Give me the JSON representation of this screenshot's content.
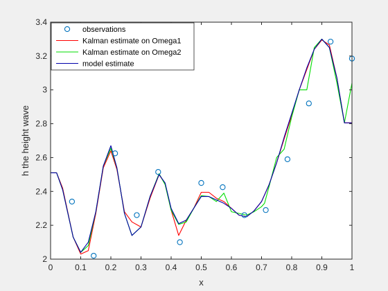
{
  "chart_data": {
    "type": "line",
    "xlabel": "x",
    "ylabel": "h the height wave",
    "xlim": [
      0,
      1
    ],
    "ylim": [
      2,
      3.4
    ],
    "xticks": [
      0,
      0.1,
      0.2,
      0.3,
      0.4,
      0.5,
      0.6,
      0.7,
      0.8,
      0.9,
      1
    ],
    "xtick_labels": [
      "0",
      "0.1",
      "0.2",
      "0.3",
      "0.4",
      "0.5",
      "0.6",
      "0.7",
      "0.8",
      "0.9",
      "1"
    ],
    "yticks": [
      2,
      2.2,
      2.4,
      2.6,
      2.8,
      3,
      3.2,
      3.4
    ],
    "ytick_labels": [
      "2",
      "2.2",
      "2.4",
      "2.6",
      "2.8",
      "3",
      "3.2",
      "3.4"
    ],
    "grid": false,
    "legend_position": "top-left",
    "series": [
      {
        "name": "observations",
        "style": "markers",
        "color": "#0072bd",
        "x": [
          0.071,
          0.143,
          0.214,
          0.286,
          0.357,
          0.429,
          0.5,
          0.571,
          0.643,
          0.714,
          0.786,
          0.857,
          0.929,
          1.0
        ],
        "y": [
          2.34,
          2.02,
          2.625,
          2.26,
          2.515,
          2.1,
          2.45,
          2.425,
          2.26,
          2.29,
          2.59,
          2.92,
          3.285,
          3.185
        ]
      },
      {
        "name": "Kalman estimate on Omega1",
        "style": "line",
        "color": "#ff0000",
        "x": [
          0,
          0.02,
          0.04,
          0.075,
          0.1,
          0.125,
          0.15,
          0.175,
          0.2,
          0.22,
          0.245,
          0.27,
          0.3,
          0.33,
          0.36,
          0.38,
          0.4,
          0.425,
          0.45,
          0.475,
          0.5,
          0.525,
          0.55,
          0.575,
          0.6,
          0.625,
          0.65,
          0.675,
          0.7,
          0.725,
          0.75,
          0.775,
          0.8,
          0.825,
          0.85,
          0.875,
          0.9,
          0.925,
          0.95,
          0.975,
          1.0
        ],
        "y": [
          2.51,
          2.51,
          2.42,
          2.13,
          2.03,
          2.05,
          2.27,
          2.54,
          2.64,
          2.53,
          2.28,
          2.22,
          2.19,
          2.36,
          2.5,
          2.445,
          2.29,
          2.14,
          2.23,
          2.3,
          2.395,
          2.395,
          2.36,
          2.34,
          2.3,
          2.26,
          2.25,
          2.285,
          2.34,
          2.44,
          2.57,
          2.71,
          2.85,
          3.0,
          3.12,
          3.24,
          3.295,
          3.265,
          3.07,
          2.805,
          2.805
        ]
      },
      {
        "name": "Kalman estimate on Omega2",
        "style": "line",
        "color": "#00dd00",
        "x": [
          0,
          0.02,
          0.04,
          0.075,
          0.1,
          0.125,
          0.15,
          0.175,
          0.2,
          0.22,
          0.245,
          0.27,
          0.3,
          0.33,
          0.36,
          0.38,
          0.4,
          0.425,
          0.45,
          0.475,
          0.5,
          0.525,
          0.55,
          0.575,
          0.6,
          0.625,
          0.65,
          0.675,
          0.7,
          0.71,
          0.725,
          0.75,
          0.775,
          0.8,
          0.825,
          0.85,
          0.875,
          0.9,
          0.925,
          0.95,
          0.975,
          1.0
        ],
        "y": [
          2.51,
          2.51,
          2.41,
          2.13,
          2.04,
          2.08,
          2.28,
          2.55,
          2.655,
          2.54,
          2.27,
          2.14,
          2.19,
          2.37,
          2.505,
          2.44,
          2.29,
          2.205,
          2.22,
          2.3,
          2.375,
          2.37,
          2.34,
          2.39,
          2.28,
          2.27,
          2.26,
          2.28,
          2.31,
          2.33,
          2.43,
          2.6,
          2.65,
          2.84,
          3.0,
          3.0,
          3.25,
          3.3,
          3.25,
          3.04,
          2.805,
          3.04
        ]
      },
      {
        "name": "model estimate",
        "style": "line",
        "color": "#0000aa",
        "x": [
          0,
          0.02,
          0.04,
          0.075,
          0.1,
          0.125,
          0.15,
          0.175,
          0.2,
          0.22,
          0.245,
          0.27,
          0.3,
          0.33,
          0.36,
          0.38,
          0.4,
          0.425,
          0.45,
          0.475,
          0.5,
          0.525,
          0.55,
          0.575,
          0.6,
          0.625,
          0.65,
          0.675,
          0.7,
          0.725,
          0.75,
          0.775,
          0.8,
          0.825,
          0.85,
          0.875,
          0.9,
          0.925,
          0.95,
          0.975,
          1.0
        ],
        "y": [
          2.51,
          2.51,
          2.41,
          2.13,
          2.04,
          2.1,
          2.28,
          2.55,
          2.67,
          2.54,
          2.27,
          2.14,
          2.19,
          2.37,
          2.5,
          2.45,
          2.3,
          2.21,
          2.23,
          2.3,
          2.37,
          2.37,
          2.35,
          2.33,
          2.3,
          2.26,
          2.25,
          2.285,
          2.34,
          2.44,
          2.57,
          2.72,
          2.86,
          3.0,
          3.13,
          3.24,
          3.3,
          3.25,
          3.07,
          2.805,
          2.805
        ]
      }
    ]
  }
}
